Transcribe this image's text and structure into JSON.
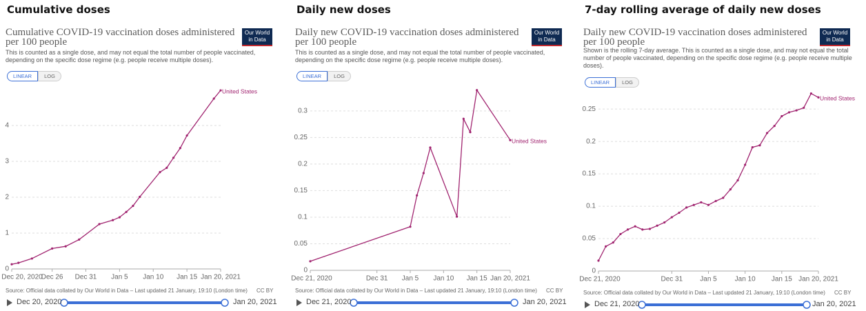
{
  "chart_data": [
    {
      "type": "line",
      "heading": "Cumulative doses",
      "title": "Cumulative COVID-19 vaccination doses administered per 100 people",
      "subtitle": "This is counted as a single dose, and may not equal the total number of people vaccinated, depending on the specific dose regime (e.g. people receive multiple doses).",
      "logo": "Our World in Data",
      "buttons": [
        "LINEAR",
        "LOG"
      ],
      "x": [
        "2020-12-20",
        "2020-12-21",
        "2020-12-23",
        "2020-12-26",
        "2020-12-28",
        "2020-12-30",
        "2021-01-02",
        "2021-01-04",
        "2021-01-05",
        "2021-01-06",
        "2021-01-07",
        "2021-01-08",
        "2021-01-11",
        "2021-01-12",
        "2021-01-13",
        "2021-01-14",
        "2021-01-15",
        "2021-01-19",
        "2021-01-20"
      ],
      "xlim": [
        "2020-12-20",
        "2021-01-20"
      ],
      "xticks": [
        {
          "value": "2020-12-20",
          "label": "Dec 20, 2020"
        },
        {
          "value": "2020-12-26",
          "label": "Dec 26"
        },
        {
          "value": "2020-12-31",
          "label": "Dec 31"
        },
        {
          "value": "2021-01-05",
          "label": "Jan 5"
        },
        {
          "value": "2021-01-10",
          "label": "Jan 10"
        },
        {
          "value": "2021-01-15",
          "label": "Jan 15"
        },
        {
          "value": "2021-01-20",
          "label": "Jan 20, 2021"
        }
      ],
      "ylim": [
        0,
        5
      ],
      "yticks": [
        0,
        1,
        2,
        3,
        4
      ],
      "grid": true,
      "series": [
        {
          "name": "United States",
          "color": "#a0236f",
          "values": [
            0.13,
            0.17,
            0.29,
            0.57,
            0.63,
            0.82,
            1.25,
            1.36,
            1.44,
            1.59,
            1.76,
            2.01,
            2.7,
            2.82,
            3.1,
            3.37,
            3.72,
            4.75,
            4.98
          ]
        }
      ],
      "source": "Source: Official data collated by Our World in Data – Last updated 21 January, 19:10 (London time)",
      "license": "CC BY",
      "timeline": {
        "start": "Dec 20, 2020",
        "end": "Jan 20, 2021"
      }
    },
    {
      "type": "line",
      "heading": "Daily new doses",
      "title": "Daily new COVID-19 vaccination doses administered per 100 people",
      "subtitle": "This is counted as a single dose, and may not equal the total number of people vaccinated, depending on the specific dose regime (e.g. people receive multiple doses).",
      "logo": "Our World in Data",
      "buttons": [
        "LINEAR",
        "LOG"
      ],
      "x": [
        "2020-12-21",
        "2021-01-05",
        "2021-01-06",
        "2021-01-07",
        "2021-01-08",
        "2021-01-12",
        "2021-01-13",
        "2021-01-14",
        "2021-01-15",
        "2021-01-20"
      ],
      "xlim": [
        "2020-12-21",
        "2021-01-20"
      ],
      "xticks": [
        {
          "value": "2020-12-21",
          "label": "Dec 21, 2020"
        },
        {
          "value": "2020-12-31",
          "label": "Dec 31"
        },
        {
          "value": "2021-01-05",
          "label": "Jan 5"
        },
        {
          "value": "2021-01-10",
          "label": "Jan 10"
        },
        {
          "value": "2021-01-15",
          "label": "Jan 15"
        },
        {
          "value": "2021-01-20",
          "label": "Jan 20, 2021"
        }
      ],
      "ylim": [
        0,
        0.34
      ],
      "yticks": [
        0,
        0.05,
        0.1,
        0.15,
        0.2,
        0.25,
        0.3
      ],
      "grid": true,
      "series": [
        {
          "name": "United States",
          "color": "#a0236f",
          "values": [
            0.017,
            0.082,
            0.141,
            0.183,
            0.231,
            0.101,
            0.285,
            0.26,
            0.339,
            0.245
          ]
        }
      ],
      "source": "Source: Official data collated by Our World in Data – Last updated 21 January, 19:10 (London time)",
      "license": "CC BY",
      "timeline": {
        "start": "Dec 21, 2020",
        "end": "Jan 20, 2021"
      }
    },
    {
      "type": "line",
      "heading": "7-day rolling average of daily new doses",
      "title": "Daily new COVID-19 vaccination doses administered per 100 people",
      "subtitle": "Shown is the rolling 7-day average. This is counted as a single dose, and may not equal the total number of people vaccinated, depending on the specific dose regime (e.g. people receive multiple doses).",
      "logo": "Our World in Data",
      "buttons": [
        "LINEAR",
        "LOG"
      ],
      "x": [
        "2020-12-21",
        "2020-12-22",
        "2020-12-23",
        "2020-12-24",
        "2020-12-25",
        "2020-12-26",
        "2020-12-27",
        "2020-12-28",
        "2020-12-29",
        "2020-12-30",
        "2020-12-31",
        "2021-01-01",
        "2021-01-02",
        "2021-01-03",
        "2021-01-04",
        "2021-01-05",
        "2021-01-06",
        "2021-01-07",
        "2021-01-08",
        "2021-01-09",
        "2021-01-10",
        "2021-01-11",
        "2021-01-12",
        "2021-01-13",
        "2021-01-14",
        "2021-01-15",
        "2021-01-16",
        "2021-01-17",
        "2021-01-18",
        "2021-01-19",
        "2021-01-20"
      ],
      "xlim": [
        "2020-12-21",
        "2021-01-20"
      ],
      "xticks": [
        {
          "value": "2020-12-21",
          "label": "Dec 21, 2020"
        },
        {
          "value": "2020-12-31",
          "label": "Dec 31"
        },
        {
          "value": "2021-01-05",
          "label": "Jan 5"
        },
        {
          "value": "2021-01-10",
          "label": "Jan 10"
        },
        {
          "value": "2021-01-15",
          "label": "Jan 15"
        },
        {
          "value": "2021-01-20",
          "label": "Jan 20, 2021"
        }
      ],
      "ylim": [
        0,
        0.28
      ],
      "yticks": [
        0,
        0.05,
        0.1,
        0.15,
        0.2,
        0.25
      ],
      "grid": true,
      "series": [
        {
          "name": "United States",
          "color": "#a0236f",
          "values": [
            0.016,
            0.038,
            0.044,
            0.057,
            0.064,
            0.069,
            0.064,
            0.065,
            0.07,
            0.075,
            0.083,
            0.09,
            0.098,
            0.102,
            0.106,
            0.102,
            0.108,
            0.113,
            0.126,
            0.14,
            0.164,
            0.191,
            0.194,
            0.213,
            0.224,
            0.239,
            0.245,
            0.248,
            0.252,
            0.274,
            0.268
          ]
        }
      ],
      "source": "Source: Official data collated by Our World in Data – Last updated 21 January, 19:10 (London time)",
      "license": "CC BY",
      "timeline": {
        "start": "Dec 21, 2020",
        "end": "Jan 20, 2021"
      }
    }
  ]
}
